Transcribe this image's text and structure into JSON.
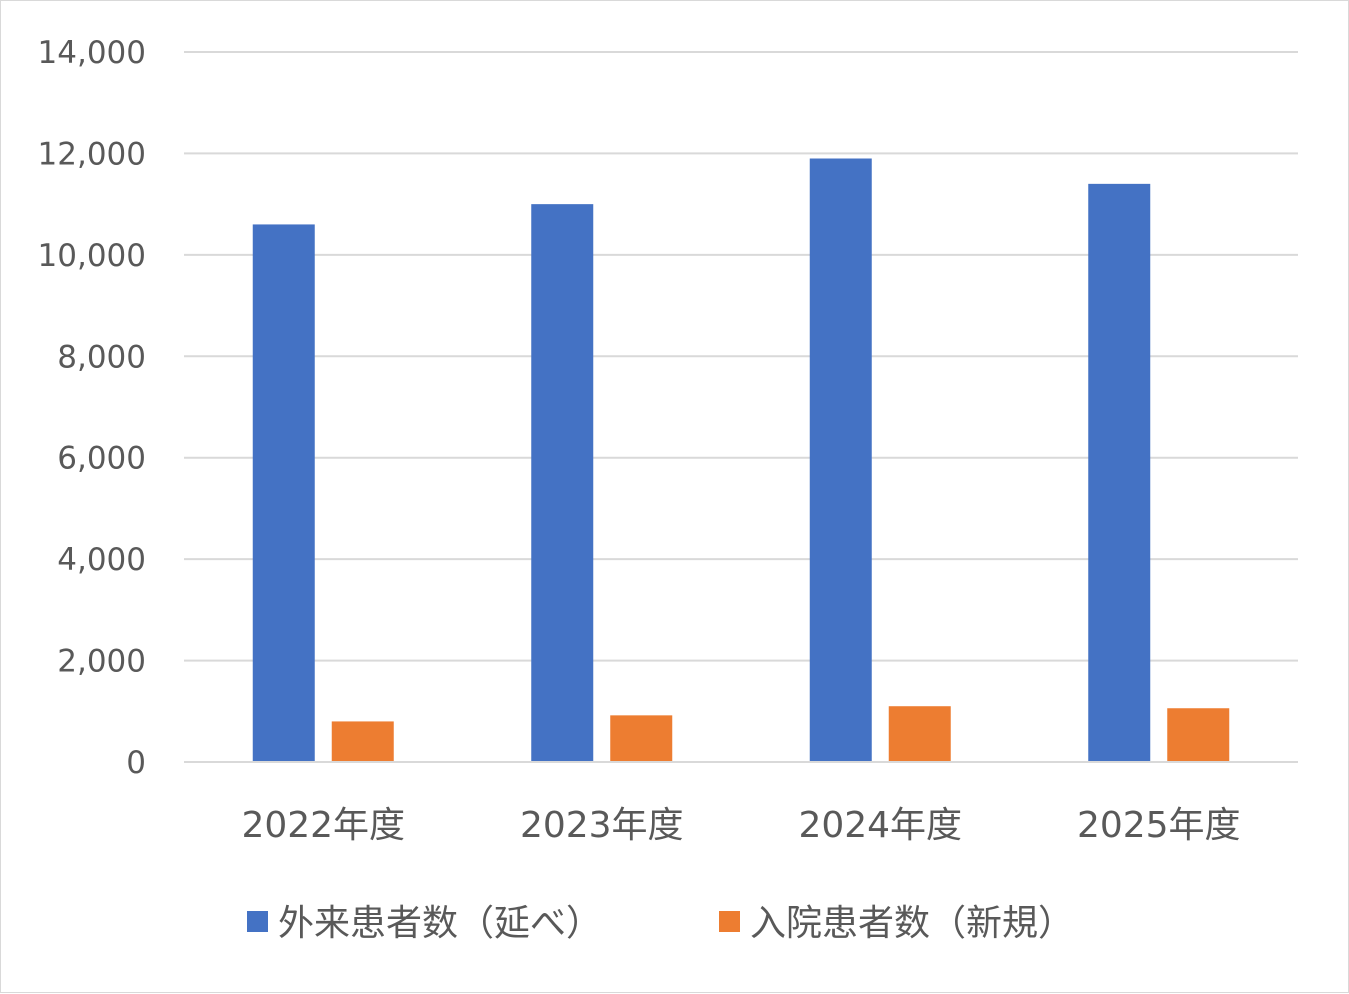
{
  "chart_data": {
    "type": "bar",
    "categories": [
      "2022年度",
      "2023年度",
      "2024年度",
      "2025年度"
    ],
    "series": [
      {
        "name": "外来患者数（延べ）",
        "color": "#4472C4",
        "values": [
          10600,
          11000,
          11900,
          11400
        ]
      },
      {
        "name": "入院患者数（新規）",
        "color": "#ED7D31",
        "values": [
          800,
          920,
          1100,
          1060
        ]
      }
    ],
    "ylim": [
      0,
      14000
    ],
    "yticks": [
      0,
      2000,
      4000,
      6000,
      8000,
      10000,
      12000,
      14000
    ],
    "ytick_labels": [
      "0",
      "2,000",
      "4,000",
      "6,000",
      "8,000",
      "10,000",
      "12,000",
      "14,000"
    ],
    "grid": true,
    "gridline_color": "#d9d9d9",
    "legend_position": "bottom",
    "title": "",
    "xlabel": "",
    "ylabel": ""
  }
}
